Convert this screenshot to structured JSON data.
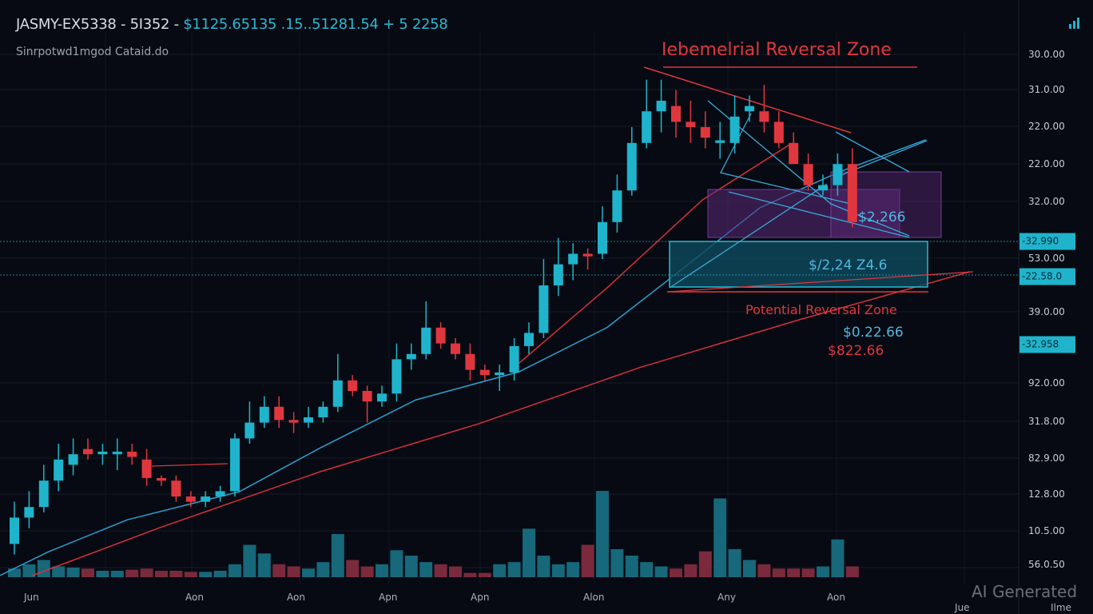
{
  "header": {
    "symbol": "JASMY-EX5338 - 5I352 - ",
    "price_line": "$1125.65135 .15..51281.54 + 5 2258",
    "subtitle": "Sinrpotwd1mgod Cataid.do",
    "icon": "chart-bars-icon"
  },
  "annotations": {
    "top_zone": "Iebemelrial Reversal Zone",
    "purple_price": "$2,266",
    "cyan_zone_price": "$/2,24 Z4.6",
    "bottom_zone": "Potential Reversal Zone",
    "price_cyan": "$0.22.66",
    "price_red": "$822.66"
  },
  "y_axis": {
    "labels": [
      "30.0.00",
      "31.0.00",
      "22.0.00",
      "22.0.00",
      "32.0.00",
      "53.0.00",
      "39.0.00",
      "92.0.00",
      "31.8.00",
      "82.9.00",
      "12.8.00",
      "10.5.00",
      "56.0.50"
    ],
    "tags": [
      "-32.990",
      "-22.58.0",
      "-32.958"
    ]
  },
  "x_axis": {
    "labels": [
      "Jun",
      "Aon",
      "Aon",
      "Apn",
      "Apn",
      "Alon",
      "Any",
      "Aon",
      "Jue",
      "Ilme"
    ]
  },
  "watermark": "AI Generated",
  "colors": {
    "up": "#1fb4cc",
    "down": "#e0373f",
    "bg": "#070a12",
    "zone_purple": "#5a2a78",
    "zone_cyan": "#0e4a5e"
  },
  "chart_data": {
    "type": "candlestick",
    "title": "JASMY-EX5338",
    "price_range": [
      0,
      100
    ],
    "candles": [
      [
        6,
        14,
        4,
        11
      ],
      [
        11,
        16,
        9,
        13
      ],
      [
        13,
        21,
        12,
        18
      ],
      [
        18,
        25,
        16,
        22
      ],
      [
        21,
        26,
        19,
        23
      ],
      [
        24,
        26,
        22,
        23
      ],
      [
        23,
        25,
        21,
        23.5
      ],
      [
        23,
        26,
        20,
        23.5
      ],
      [
        23.5,
        25,
        21,
        22.5
      ],
      [
        22,
        24,
        17,
        18.5
      ],
      [
        18.5,
        19,
        17,
        18
      ],
      [
        18,
        19,
        14,
        15
      ],
      [
        15,
        16,
        13,
        14
      ],
      [
        14,
        16,
        13,
        15
      ],
      [
        15,
        17,
        14,
        16
      ],
      [
        16,
        27,
        15,
        26
      ],
      [
        26,
        33,
        25,
        29
      ],
      [
        29,
        34,
        28,
        32
      ],
      [
        32,
        34,
        28,
        29.5
      ],
      [
        29.5,
        31,
        27,
        29
      ],
      [
        29,
        32,
        28,
        30
      ],
      [
        30,
        33,
        29,
        32
      ],
      [
        32,
        42,
        31,
        37
      ],
      [
        37,
        38,
        34,
        35
      ],
      [
        35,
        36,
        29,
        33
      ],
      [
        33,
        36,
        32,
        34.5
      ],
      [
        34.5,
        44,
        33,
        41
      ],
      [
        41,
        44,
        39,
        42
      ],
      [
        42,
        52,
        41,
        47
      ],
      [
        47,
        48,
        43,
        44
      ],
      [
        44,
        45,
        41,
        42
      ],
      [
        42,
        44,
        37,
        39
      ],
      [
        39,
        40,
        37,
        38
      ],
      [
        38,
        40,
        35,
        38.5
      ],
      [
        38.5,
        45,
        37,
        43.5
      ],
      [
        43.5,
        48,
        42,
        46
      ],
      [
        46,
        60,
        45,
        55
      ],
      [
        55,
        64,
        53,
        59
      ],
      [
        59,
        63,
        56,
        61
      ],
      [
        61,
        62,
        58,
        60.5
      ],
      [
        61,
        70,
        60,
        67
      ],
      [
        67,
        76,
        65,
        73
      ],
      [
        73,
        85,
        72,
        82
      ],
      [
        82,
        94,
        81,
        88
      ],
      [
        88,
        94,
        84,
        90
      ],
      [
        89,
        92,
        83,
        86
      ],
      [
        86,
        90,
        82,
        85
      ],
      [
        85,
        88,
        81,
        83
      ],
      [
        82,
        86,
        79,
        82.5
      ],
      [
        82,
        91,
        80,
        87
      ],
      [
        88,
        91,
        86,
        89
      ],
      [
        88,
        93,
        84,
        86
      ],
      [
        86,
        88,
        81,
        82
      ],
      [
        82,
        84,
        78,
        78
      ],
      [
        78,
        80,
        73,
        74
      ],
      [
        73,
        76,
        72,
        74
      ],
      [
        74,
        80,
        72,
        78
      ],
      [
        78,
        81,
        66,
        67
      ]
    ],
    "volume": [
      8,
      12,
      16,
      10,
      9,
      8,
      6,
      6,
      7,
      8,
      6,
      6,
      5,
      5,
      6,
      12,
      30,
      22,
      12,
      10,
      8,
      14,
      40,
      16,
      10,
      12,
      25,
      20,
      14,
      12,
      10,
      4,
      4,
      12,
      14,
      45,
      20,
      12,
      14,
      30,
      80,
      26,
      20,
      14,
      10,
      8,
      12,
      24,
      73,
      26,
      16,
      12,
      8,
      8,
      8,
      10,
      35,
      10
    ],
    "ma_cyan": [
      [
        -1,
        0
      ],
      [
        2.3,
        4.5
      ],
      [
        7.7,
        10.6
      ],
      [
        15.3,
        15.9
      ],
      [
        20.8,
        24.2
      ],
      [
        27.3,
        33.3
      ],
      [
        34.3,
        38.6
      ],
      [
        40.3,
        47
      ],
      [
        45.2,
        57.6
      ],
      [
        50.7,
        69.7
      ],
      [
        56.1,
        76.5
      ],
      [
        62,
        82.6
      ]
    ],
    "ma_red_long": [
      [
        1.2,
        0
      ],
      [
        9.9,
        9.1
      ],
      [
        20.8,
        19.7
      ],
      [
        31.6,
        28.8
      ],
      [
        42.5,
        39.4
      ],
      [
        53.4,
        48.5
      ],
      [
        65,
        57.6
      ]
    ],
    "ma_red_short": [
      [
        34.3,
        40.2
      ],
      [
        40.3,
        54.5
      ],
      [
        46.8,
        71.2
      ],
      [
        52.8,
        81.8
      ]
    ]
  }
}
